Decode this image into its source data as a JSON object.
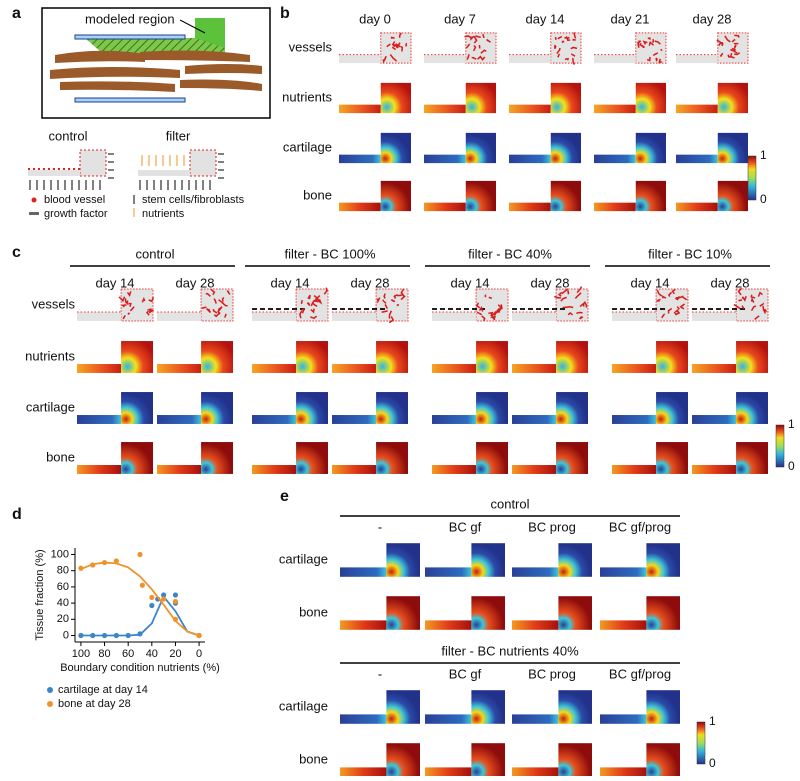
{
  "panel_a": {
    "label": "a",
    "modeled_region": "modeled region",
    "control": "control",
    "filter": "filter",
    "legend": [
      "blood vessel",
      "growth factor",
      "stem cells/fibroblasts",
      "nutrients"
    ]
  },
  "panel_b": {
    "label": "b",
    "columns": [
      "day 0",
      "day 7",
      "day 14",
      "day 21",
      "day 28"
    ],
    "rows": [
      "vessels",
      "nutrients",
      "cartilage",
      "bone"
    ],
    "colorbar": [
      0,
      1
    ]
  },
  "panel_c": {
    "label": "c",
    "groups": [
      "control",
      "filter - BC 100%",
      "filter - BC 40%",
      "filter - BC 10%"
    ],
    "days": [
      "day 14",
      "day 28"
    ],
    "rows": [
      "vessels",
      "nutrients",
      "cartilage",
      "bone"
    ],
    "colorbar": [
      0,
      1
    ]
  },
  "chart_data": {
    "type": "scatter",
    "label": "d",
    "xlabel": "Boundary condition nutrients (%)",
    "ylabel": "Tissue fraction (%)",
    "xlim": [
      105,
      -5
    ],
    "ylim": [
      -8,
      108
    ],
    "xticks": [
      100,
      80,
      60,
      40,
      20,
      0
    ],
    "yticks": [
      0,
      20,
      40,
      60,
      80,
      100
    ],
    "fit_x": [
      100,
      90,
      80,
      70,
      60,
      50,
      40,
      30,
      20,
      10,
      0
    ],
    "series": [
      {
        "name": "cartilage at day 14",
        "color": "#3a86c8",
        "x": [
          100,
          90,
          80,
          70,
          60,
          50,
          40,
          35,
          30,
          20,
          20,
          0
        ],
        "values": [
          0,
          0,
          0,
          0,
          0,
          2,
          37,
          45,
          50,
          50,
          40,
          0
        ],
        "fit": [
          0,
          0,
          0,
          0,
          0,
          1,
          15,
          48,
          30,
          5,
          0
        ]
      },
      {
        "name": "bone at day 28",
        "color": "#f0922b",
        "x": [
          100,
          90,
          80,
          70,
          50,
          48,
          40,
          30,
          20,
          20,
          0
        ],
        "values": [
          83,
          87,
          90,
          92,
          100,
          62,
          47,
          45,
          42,
          20,
          0
        ],
        "fit": [
          82,
          88,
          90,
          89,
          84,
          73,
          57,
          38,
          18,
          5,
          0
        ]
      }
    ]
  },
  "panel_e": {
    "label": "e",
    "sections": [
      "control",
      "filter - BC nutrients 40%"
    ],
    "columns": [
      "-",
      "BC gf",
      "BC prog",
      "BC gf/prog"
    ],
    "rows": [
      "cartilage",
      "bone"
    ],
    "colorbar": [
      0,
      1
    ]
  }
}
